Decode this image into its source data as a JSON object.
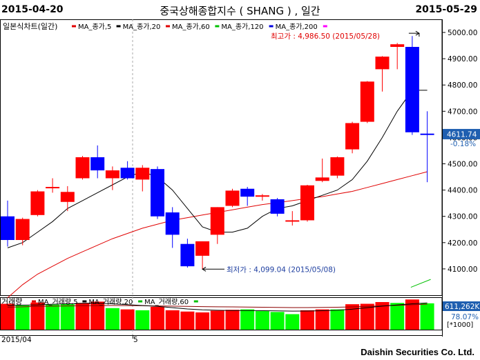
{
  "header": {
    "start_date": "2015-04-20",
    "title": "중국상해종합지수 ( SHANG ) , 일간",
    "end_date": "2015-05-29"
  },
  "legend": {
    "main_label": "일본식차트(일간)",
    "ma_items": [
      {
        "label": "MA_종가,5",
        "color": "#e00000"
      },
      {
        "label": "MA_종가,20",
        "color": "#000000"
      },
      {
        "label": "MA_종가,60",
        "color": "#e00000"
      },
      {
        "label": "MA_종가,120",
        "color": "#00c000"
      },
      {
        "label": "MA_종가,200",
        "color": "#0000e0"
      }
    ],
    "trailing_marker_color": "#ff00ff"
  },
  "volume_legend": {
    "main_label": "거래량",
    "ma_items": [
      {
        "label": "MA_거래량,5",
        "color": "#e00000"
      },
      {
        "label": "MA_거래량,20",
        "color": "#000000"
      },
      {
        "label": "MA_거래량,60",
        "color": "#00c000"
      }
    ]
  },
  "annotations": {
    "high_label": "최고가 : 4,986.50 (2015/05/28)",
    "low_label": "최저가 : 4,099.04 (2015/05/08)",
    "last_price": "4611.74",
    "last_change": "-0.18%",
    "volume_last": "611,262K",
    "volume_pct": "78.07%",
    "volume_unit": "[*1000]"
  },
  "x_axis_labels": {
    "first": "2015/04",
    "month5": "5"
  },
  "footer": "Daishin Securities Co. Ltd.",
  "colors": {
    "up": "#ff0000",
    "down": "#0000ff",
    "volume_up": "#ff0000",
    "volume_flat": "#00ff00",
    "ma5": "#000000",
    "ma60": "#e00000",
    "ma120": "#00c000"
  },
  "chart_data": {
    "type": "candlestick",
    "y_axis": {
      "min": 4000,
      "max": 5050,
      "ticks": [
        "5000.00",
        "4900.00",
        "4800.00",
        "4700.00",
        "4600.00",
        "4500.00",
        "4400.00",
        "4300.00",
        "4200.00",
        "4100.00"
      ]
    },
    "candles": [
      {
        "o": 4300,
        "h": 4360,
        "l": 4185,
        "c": 4210
      },
      {
        "o": 4210,
        "h": 4295,
        "l": 4190,
        "c": 4290
      },
      {
        "o": 4305,
        "h": 4400,
        "l": 4300,
        "c": 4395
      },
      {
        "o": 4410,
        "h": 4445,
        "l": 4390,
        "c": 4412
      },
      {
        "o": 4355,
        "h": 4415,
        "l": 4320,
        "c": 4393
      },
      {
        "o": 4445,
        "h": 4530,
        "l": 4440,
        "c": 4525
      },
      {
        "o": 4525,
        "h": 4570,
        "l": 4445,
        "c": 4475
      },
      {
        "o": 4445,
        "h": 4490,
        "l": 4400,
        "c": 4475
      },
      {
        "o": 4485,
        "h": 4510,
        "l": 4440,
        "c": 4445
      },
      {
        "o": 4440,
        "h": 4495,
        "l": 4395,
        "c": 4485
      },
      {
        "o": 4480,
        "h": 4490,
        "l": 4290,
        "c": 4300
      },
      {
        "o": 4315,
        "h": 4335,
        "l": 4180,
        "c": 4230
      },
      {
        "o": 4195,
        "h": 4215,
        "l": 4105,
        "c": 4110
      },
      {
        "o": 4150,
        "h": 4205,
        "l": 4099,
        "c": 4205
      },
      {
        "o": 4230,
        "h": 4335,
        "l": 4195,
        "c": 4335
      },
      {
        "o": 4340,
        "h": 4405,
        "l": 4335,
        "c": 4398
      },
      {
        "o": 4405,
        "h": 4412,
        "l": 4340,
        "c": 4375
      },
      {
        "o": 4375,
        "h": 4385,
        "l": 4360,
        "c": 4380
      },
      {
        "o": 4365,
        "h": 4370,
        "l": 4300,
        "c": 4310
      },
      {
        "o": 4280,
        "h": 4320,
        "l": 4265,
        "c": 4285
      },
      {
        "o": 4285,
        "h": 4420,
        "l": 4280,
        "c": 4418
      },
      {
        "o": 4435,
        "h": 4520,
        "l": 4430,
        "c": 4448
      },
      {
        "o": 4455,
        "h": 4528,
        "l": 4445,
        "c": 4525
      },
      {
        "o": 4555,
        "h": 4660,
        "l": 4540,
        "c": 4655
      },
      {
        "o": 4660,
        "h": 4815,
        "l": 4655,
        "c": 4813
      },
      {
        "o": 4860,
        "h": 4910,
        "l": 4775,
        "c": 4908
      },
      {
        "o": 4945,
        "h": 4960,
        "l": 4860,
        "c": 4955
      },
      {
        "o": 4945,
        "h": 4986.5,
        "l": 4610,
        "c": 4620
      },
      {
        "o": 4615,
        "h": 4700,
        "l": 4430,
        "c": 4611.74
      }
    ],
    "ma5": [
      4180,
      4200,
      4240,
      4280,
      4330,
      4360,
      4390,
      4420,
      4450,
      4470,
      4450,
      4400,
      4330,
      4260,
      4240,
      4240,
      4255,
      4300,
      4330,
      4340,
      4360,
      4380,
      4400,
      4440,
      4510,
      4600,
      4700,
      4780,
      4780
    ],
    "ma60": [
      3990,
      4040,
      4080,
      4110,
      4140,
      4165,
      4190,
      4215,
      4235,
      4255,
      4270,
      4285,
      4295,
      4305,
      4315,
      4325,
      4335,
      4345,
      4352,
      4360,
      4368,
      4375,
      4385,
      4395,
      4410,
      4425,
      4440,
      4455,
      4470
    ],
    "volume": {
      "max": 720,
      "bars": [
        {
          "v": 600,
          "up": true
        },
        {
          "v": 560,
          "up": false
        },
        {
          "v": 630,
          "up": true
        },
        {
          "v": 580,
          "up": false
        },
        {
          "v": 590,
          "up": false
        },
        {
          "v": 620,
          "up": true
        },
        {
          "v": 650,
          "up": true
        },
        {
          "v": 500,
          "up": false
        },
        {
          "v": 470,
          "up": true
        },
        {
          "v": 450,
          "up": false
        },
        {
          "v": 530,
          "up": true
        },
        {
          "v": 450,
          "up": true
        },
        {
          "v": 420,
          "up": true
        },
        {
          "v": 400,
          "up": true
        },
        {
          "v": 440,
          "up": true
        },
        {
          "v": 460,
          "up": true
        },
        {
          "v": 470,
          "up": false
        },
        {
          "v": 430,
          "up": false
        },
        {
          "v": 410,
          "up": false
        },
        {
          "v": 360,
          "up": false
        },
        {
          "v": 450,
          "up": true
        },
        {
          "v": 470,
          "up": true
        },
        {
          "v": 470,
          "up": false
        },
        {
          "v": 590,
          "up": true
        },
        {
          "v": 600,
          "up": true
        },
        {
          "v": 640,
          "up": true
        },
        {
          "v": 620,
          "up": false
        },
        {
          "v": 700,
          "up": true
        },
        {
          "v": 611,
          "up": false
        }
      ],
      "ma_black": [
        560,
        570,
        575,
        590,
        600,
        610,
        615,
        600,
        580,
        560,
        540,
        510,
        480,
        460,
        450,
        445,
        445,
        440,
        435,
        430,
        432,
        440,
        450,
        475,
        510,
        545,
        575,
        600,
        620
      ],
      "ma_red": [
        520,
        530,
        540,
        545,
        550,
        555,
        558,
        560,
        558,
        555,
        550,
        545,
        540,
        535,
        530,
        528,
        525,
        520,
        515,
        512,
        512,
        515,
        520,
        528,
        540,
        552,
        565,
        578,
        590
      ]
    }
  }
}
